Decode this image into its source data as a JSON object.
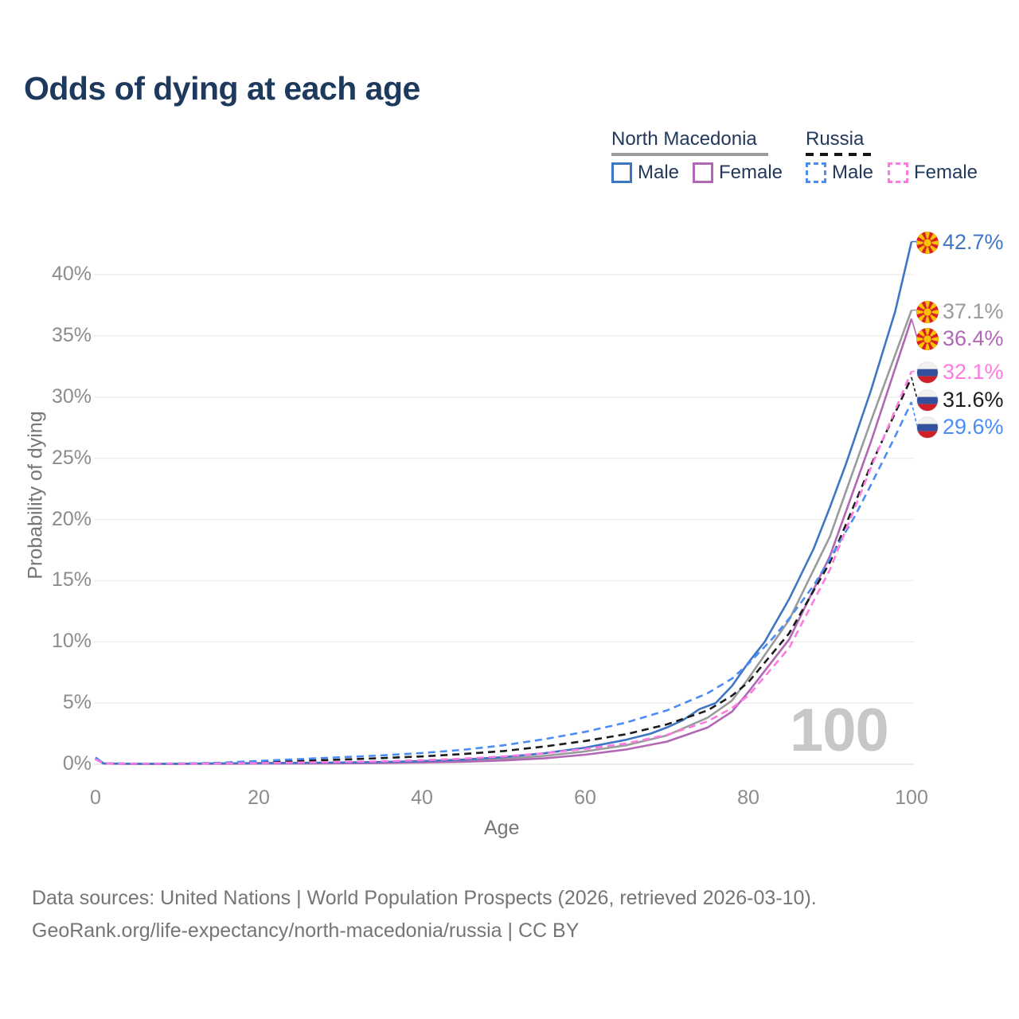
{
  "title": "Odds of dying at each age",
  "legend": {
    "groups": [
      {
        "name": "North Macedonia",
        "line_style": "solid",
        "underline_color": "#9b9b9b",
        "items": [
          {
            "label": "Male",
            "color": "#3f76c4",
            "dashed": false
          },
          {
            "label": "Female",
            "color": "#b168b4",
            "dashed": false
          }
        ]
      },
      {
        "name": "Russia",
        "line_style": "dashed",
        "underline_color": "#161616",
        "items": [
          {
            "label": "Male",
            "color": "#4c8df5",
            "dashed": true
          },
          {
            "label": "Female",
            "color": "#ff7ae0",
            "dashed": true
          }
        ]
      }
    ]
  },
  "chart_data": {
    "type": "line",
    "title": "Odds of dying at each age",
    "xlabel": "Age",
    "ylabel": "Probability of dying",
    "values_unit": "percent",
    "xlim": [
      0,
      100
    ],
    "ylim": [
      0,
      44
    ],
    "x_ticks": [
      0,
      20,
      40,
      60,
      80,
      100
    ],
    "y_ticks": [
      "0%",
      "5%",
      "10%",
      "15%",
      "20%",
      "25%",
      "30%",
      "35%",
      "40%"
    ],
    "grid": "horizontal",
    "legend_position": "top-right",
    "age_watermark": "100",
    "series": [
      {
        "id": "nm-total",
        "country": "North Macedonia",
        "sex": "All",
        "flag": "mk",
        "color": "#9b9b9b",
        "dashed": false,
        "end_label": "37.1%",
        "end_value": 37.1,
        "points": [
          [
            0,
            0.5
          ],
          [
            1,
            0.05
          ],
          [
            5,
            0.03
          ],
          [
            10,
            0.03
          ],
          [
            15,
            0.06
          ],
          [
            20,
            0.08
          ],
          [
            25,
            0.09
          ],
          [
            30,
            0.11
          ],
          [
            35,
            0.14
          ],
          [
            40,
            0.19
          ],
          [
            45,
            0.28
          ],
          [
            50,
            0.44
          ],
          [
            55,
            0.68
          ],
          [
            60,
            1.05
          ],
          [
            65,
            1.55
          ],
          [
            70,
            2.35
          ],
          [
            75,
            3.8
          ],
          [
            78,
            5.2
          ],
          [
            80,
            7.0
          ],
          [
            85,
            11.8
          ],
          [
            90,
            18.6
          ],
          [
            95,
            28.0
          ],
          [
            100,
            37.1
          ]
        ]
      },
      {
        "id": "nm-female",
        "country": "North Macedonia",
        "sex": "Female",
        "flag": "mk",
        "color": "#b168b4",
        "dashed": false,
        "end_label": "36.4%",
        "end_value": 36.4,
        "points": [
          [
            0,
            0.45
          ],
          [
            1,
            0.05
          ],
          [
            5,
            0.03
          ],
          [
            10,
            0.03
          ],
          [
            15,
            0.04
          ],
          [
            20,
            0.05
          ],
          [
            25,
            0.06
          ],
          [
            30,
            0.08
          ],
          [
            35,
            0.1
          ],
          [
            40,
            0.14
          ],
          [
            45,
            0.2
          ],
          [
            50,
            0.31
          ],
          [
            55,
            0.48
          ],
          [
            60,
            0.78
          ],
          [
            65,
            1.2
          ],
          [
            70,
            1.85
          ],
          [
            75,
            3.0
          ],
          [
            78,
            4.3
          ],
          [
            80,
            5.9
          ],
          [
            85,
            10.2
          ],
          [
            90,
            17.0
          ],
          [
            95,
            26.3
          ],
          [
            100,
            36.4
          ]
        ]
      },
      {
        "id": "nm-male",
        "country": "North Macedonia",
        "sex": "Male",
        "flag": "mk",
        "color": "#3f76c4",
        "dashed": false,
        "end_label": "42.7%",
        "end_value": 42.7,
        "points": [
          [
            0,
            0.55
          ],
          [
            1,
            0.06
          ],
          [
            5,
            0.04
          ],
          [
            10,
            0.04
          ],
          [
            15,
            0.07
          ],
          [
            20,
            0.1
          ],
          [
            25,
            0.12
          ],
          [
            30,
            0.14
          ],
          [
            35,
            0.18
          ],
          [
            40,
            0.26
          ],
          [
            45,
            0.38
          ],
          [
            50,
            0.58
          ],
          [
            55,
            0.9
          ],
          [
            60,
            1.35
          ],
          [
            65,
            2.0
          ],
          [
            68,
            2.5
          ],
          [
            70,
            3.0
          ],
          [
            72,
            3.6
          ],
          [
            74,
            4.5
          ],
          [
            76,
            5.0
          ],
          [
            78,
            6.4
          ],
          [
            80,
            8.3
          ],
          [
            82,
            10.0
          ],
          [
            85,
            13.5
          ],
          [
            88,
            17.6
          ],
          [
            90,
            21.0
          ],
          [
            92,
            24.6
          ],
          [
            95,
            30.5
          ],
          [
            98,
            37.0
          ],
          [
            100,
            42.7
          ]
        ]
      },
      {
        "id": "ru-total",
        "country": "Russia",
        "sex": "All",
        "flag": "ru",
        "color": "#1c1c1c",
        "dashed": true,
        "end_label": "31.6%",
        "end_value": 31.6,
        "points": [
          [
            0,
            0.45
          ],
          [
            1,
            0.06
          ],
          [
            5,
            0.04
          ],
          [
            10,
            0.04
          ],
          [
            15,
            0.09
          ],
          [
            20,
            0.18
          ],
          [
            25,
            0.28
          ],
          [
            30,
            0.38
          ],
          [
            35,
            0.5
          ],
          [
            40,
            0.64
          ],
          [
            45,
            0.83
          ],
          [
            50,
            1.08
          ],
          [
            55,
            1.45
          ],
          [
            60,
            1.9
          ],
          [
            65,
            2.45
          ],
          [
            70,
            3.25
          ],
          [
            75,
            4.4
          ],
          [
            78,
            5.6
          ],
          [
            80,
            6.7
          ],
          [
            85,
            10.7
          ],
          [
            90,
            16.5
          ],
          [
            95,
            24.4
          ],
          [
            100,
            31.6
          ]
        ]
      },
      {
        "id": "ru-male",
        "country": "Russia",
        "sex": "Male",
        "flag": "ru",
        "color": "#4c8df5",
        "dashed": true,
        "end_label": "29.6%",
        "end_value": 29.6,
        "points": [
          [
            0,
            0.5
          ],
          [
            1,
            0.07
          ],
          [
            5,
            0.05
          ],
          [
            10,
            0.06
          ],
          [
            15,
            0.12
          ],
          [
            20,
            0.27
          ],
          [
            25,
            0.42
          ],
          [
            30,
            0.57
          ],
          [
            35,
            0.72
          ],
          [
            40,
            0.92
          ],
          [
            45,
            1.18
          ],
          [
            50,
            1.55
          ],
          [
            55,
            2.05
          ],
          [
            60,
            2.65
          ],
          [
            65,
            3.4
          ],
          [
            70,
            4.4
          ],
          [
            75,
            5.8
          ],
          [
            78,
            7.0
          ],
          [
            80,
            8.2
          ],
          [
            83,
            10.3
          ],
          [
            85,
            11.9
          ],
          [
            88,
            14.6
          ],
          [
            90,
            16.8
          ],
          [
            93,
            20.2
          ],
          [
            95,
            22.8
          ],
          [
            98,
            26.8
          ],
          [
            100,
            29.6
          ]
        ]
      },
      {
        "id": "ru-female",
        "country": "Russia",
        "sex": "Female",
        "flag": "ru",
        "color": "#ff7ae0",
        "dashed": true,
        "end_label": "32.1%",
        "end_value": 32.1,
        "points": [
          [
            0,
            0.4
          ],
          [
            1,
            0.05
          ],
          [
            5,
            0.03
          ],
          [
            10,
            0.03
          ],
          [
            15,
            0.06
          ],
          [
            20,
            0.1
          ],
          [
            25,
            0.14
          ],
          [
            30,
            0.18
          ],
          [
            35,
            0.24
          ],
          [
            40,
            0.33
          ],
          [
            45,
            0.46
          ],
          [
            50,
            0.64
          ],
          [
            55,
            0.9
          ],
          [
            60,
            1.25
          ],
          [
            65,
            1.7
          ],
          [
            70,
            2.4
          ],
          [
            75,
            3.5
          ],
          [
            78,
            4.6
          ],
          [
            80,
            5.6
          ],
          [
            85,
            9.5
          ],
          [
            90,
            15.9
          ],
          [
            95,
            24.2
          ],
          [
            100,
            32.1
          ]
        ]
      }
    ]
  },
  "footer": {
    "line1": "Data sources: United Nations | World Population Prospects (2026, retrieved 2026-03-10).",
    "line2": "GeoRank.org/life-expectancy/north-macedonia/russia | CC BY"
  }
}
